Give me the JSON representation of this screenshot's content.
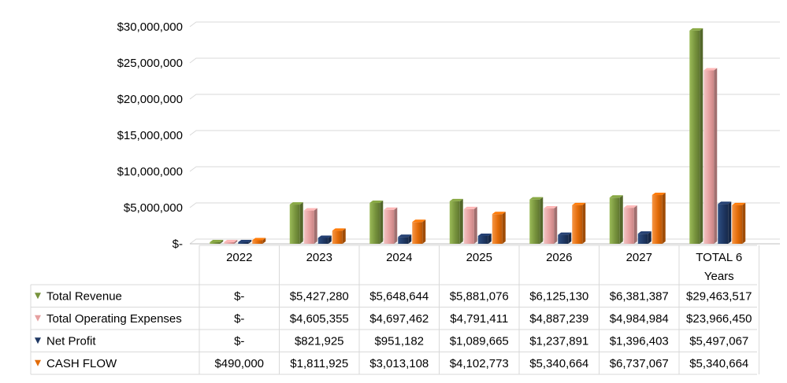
{
  "chart_data": {
    "type": "bar",
    "title": "",
    "xlabel": "",
    "ylabel": "",
    "ylim": [
      0,
      30000000
    ],
    "y_ticks": [
      {
        "value": 0,
        "label": "$-"
      },
      {
        "value": 5000000,
        "label": "$5,000,000"
      },
      {
        "value": 10000000,
        "label": "$10,000,000"
      },
      {
        "value": 15000000,
        "label": "$15,000,000"
      },
      {
        "value": 20000000,
        "label": "$20,000,000"
      },
      {
        "value": 25000000,
        "label": "$25,000,000"
      },
      {
        "value": 30000000,
        "label": "$30,000,000"
      }
    ],
    "grid": true,
    "legend": "data-table",
    "categories": [
      "2022",
      "2023",
      "2024",
      "2025",
      "2026",
      "2027",
      "TOTAL 6 Years"
    ],
    "series": [
      {
        "name": "Total Revenue",
        "color": "#77933C",
        "values": [
          0,
          5427280,
          5648644,
          5881076,
          6125130,
          6381387,
          29463517
        ],
        "labels": [
          "$-",
          "$5,427,280",
          "$5,648,644",
          "$5,881,076",
          "$6,125,130",
          "$6,381,387",
          "$29,463,517"
        ]
      },
      {
        "name": "Total Operating Expenses",
        "color": "#E6A0A0",
        "values": [
          0,
          4605355,
          4697462,
          4791411,
          4887239,
          4984984,
          23966450
        ],
        "labels": [
          "$-",
          "$4,605,355",
          "$4,697,462",
          "$4,791,411",
          "$4,887,239",
          "$4,984,984",
          "$23,966,450"
        ]
      },
      {
        "name": "Net Profit",
        "color": "#1F3864",
        "values": [
          0,
          821925,
          951182,
          1089665,
          1237891,
          1396403,
          5497067
        ],
        "labels": [
          "$-",
          "$821,925",
          "$951,182",
          "$1,089,665",
          "$1,237,891",
          "$1,396,403",
          "$5,497,067"
        ]
      },
      {
        "name": "CASH FLOW",
        "color": "#E36C09",
        "values": [
          490000,
          1811925,
          3013108,
          4102773,
          5340664,
          6737067,
          5340664
        ],
        "labels": [
          "$490,000",
          "$1,811,925",
          "$3,013,108",
          "$4,102,773",
          "$5,340,664",
          "$6,737,067",
          "$5,340,664"
        ]
      }
    ]
  }
}
